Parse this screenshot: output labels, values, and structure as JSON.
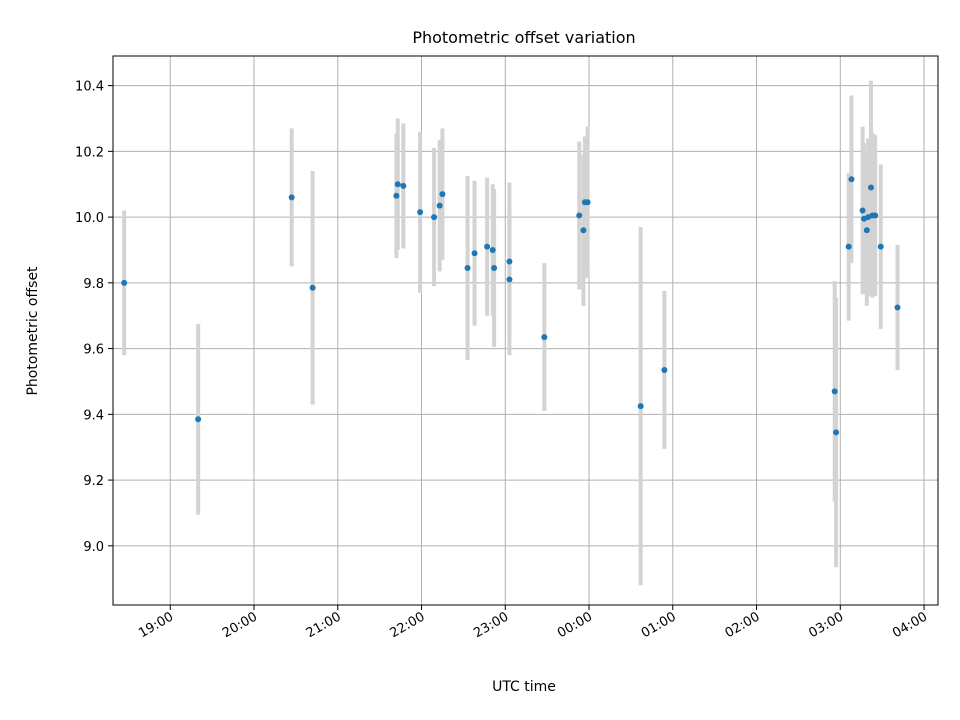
{
  "chart_data": {
    "type": "scatter",
    "title": "Photometric offset variation",
    "xlabel": "UTC time",
    "ylabel": "Photometric offset",
    "x_axis_type": "time",
    "x_tick_labels": [
      "19:00",
      "20:00",
      "21:00",
      "22:00",
      "23:00",
      "00:00",
      "01:00",
      "02:00",
      "03:00",
      "04:00"
    ],
    "y_tick_labels": [
      "9.0",
      "9.2",
      "9.4",
      "9.6",
      "9.8",
      "10.0",
      "10.2",
      "10.4"
    ],
    "xlim": [
      "18:19",
      "04:10"
    ],
    "ylim": [
      8.82,
      10.49
    ],
    "grid": true,
    "marker_color": "#1f77b4",
    "errorbar_color": "#d3d3d3",
    "series": [
      {
        "points": [
          {
            "t": "18:27",
            "y": 9.8,
            "err": 0.22
          },
          {
            "t": "19:20",
            "y": 9.385,
            "err": 0.29
          },
          {
            "t": "20:27",
            "y": 10.06,
            "err": 0.21
          },
          {
            "t": "20:42",
            "y": 9.785,
            "err": 0.355
          },
          {
            "t": "21:42",
            "y": 10.065,
            "err": 0.19
          },
          {
            "t": "21:43",
            "y": 10.1,
            "err": 0.2
          },
          {
            "t": "21:47",
            "y": 10.095,
            "err": 0.19
          },
          {
            "t": "21:59",
            "y": 10.015,
            "err": 0.245
          },
          {
            "t": "22:09",
            "y": 10.0,
            "err": 0.21
          },
          {
            "t": "22:13",
            "y": 10.035,
            "err": 0.2
          },
          {
            "t": "22:15",
            "y": 10.07,
            "err": 0.2
          },
          {
            "t": "22:33",
            "y": 9.845,
            "err": 0.28
          },
          {
            "t": "22:38",
            "y": 9.89,
            "err": 0.22
          },
          {
            "t": "22:47",
            "y": 9.91,
            "err": 0.21
          },
          {
            "t": "22:51",
            "y": 9.9,
            "err": 0.2
          },
          {
            "t": "22:52",
            "y": 9.845,
            "err": 0.24
          },
          {
            "t": "23:03",
            "y": 9.865,
            "err": 0.24
          },
          {
            "t": "23:03",
            "y": 9.81,
            "err": 0.23
          },
          {
            "t": "23:28",
            "y": 9.635,
            "err": 0.225
          },
          {
            "t": "23:53",
            "y": 10.005,
            "err": 0.225
          },
          {
            "t": "23:56",
            "y": 9.96,
            "err": 0.23
          },
          {
            "t": "23:57",
            "y": 10.045,
            "err": 0.2
          },
          {
            "t": "23:59",
            "y": 10.045,
            "err": 0.23
          },
          {
            "t": "00:37",
            "y": 9.425,
            "err": 0.545
          },
          {
            "t": "00:54",
            "y": 9.535,
            "err": 0.24
          },
          {
            "t": "02:56",
            "y": 9.47,
            "err": 0.335
          },
          {
            "t": "02:57",
            "y": 9.345,
            "err": 0.41
          },
          {
            "t": "03:06",
            "y": 9.91,
            "err": 0.225
          },
          {
            "t": "03:08",
            "y": 10.115,
            "err": 0.255
          },
          {
            "t": "03:16",
            "y": 10.02,
            "err": 0.255
          },
          {
            "t": "03:17",
            "y": 9.995,
            "err": 0.23
          },
          {
            "t": "03:19",
            "y": 9.96,
            "err": 0.23
          },
          {
            "t": "03:20",
            "y": 10.0,
            "err": 0.24
          },
          {
            "t": "03:22",
            "y": 10.09,
            "err": 0.325
          },
          {
            "t": "03:23",
            "y": 10.005,
            "err": 0.25
          },
          {
            "t": "03:25",
            "y": 10.005,
            "err": 0.245
          },
          {
            "t": "03:29",
            "y": 9.91,
            "err": 0.25
          },
          {
            "t": "03:41",
            "y": 9.725,
            "err": 0.19
          }
        ]
      }
    ]
  }
}
